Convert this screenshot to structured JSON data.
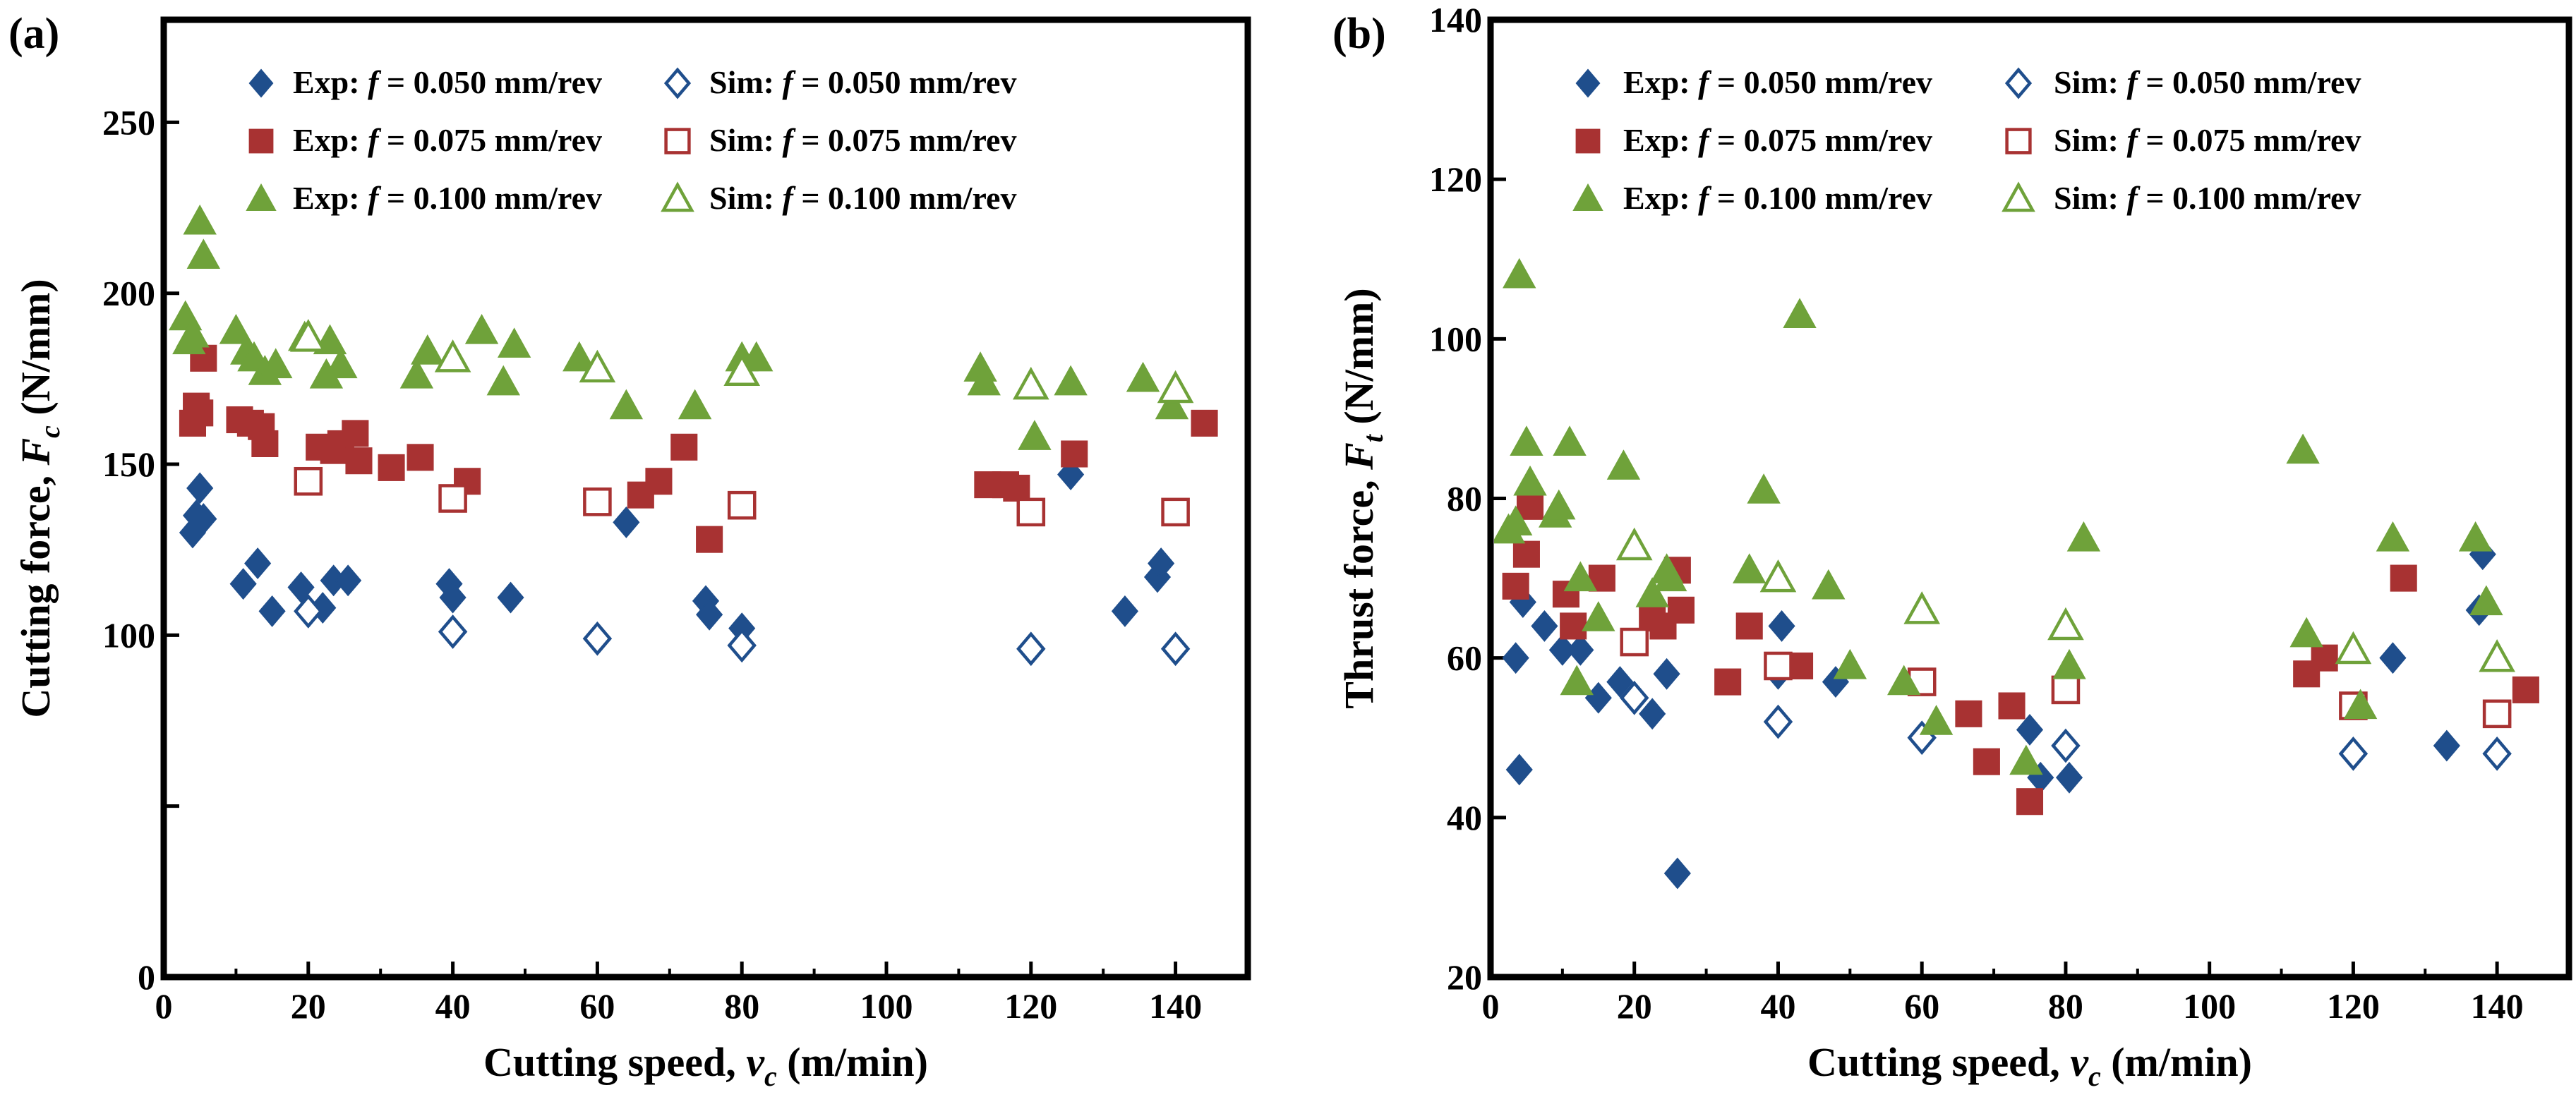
{
  "chart_data": [
    {
      "panel_label": "(a)",
      "type": "scatter",
      "xlabel_main": "Cutting speed, ",
      "xlabel_symbol": "v",
      "xlabel_sub": "c",
      "xlabel_unit": " (m/min)",
      "ylabel_main": "Cutting force, ",
      "ylabel_symbol": "F",
      "ylabel_sub": "c",
      "ylabel_unit": " (N/mm)",
      "xlim": [
        0,
        150
      ],
      "ylim": [
        0,
        280
      ],
      "xticks": [
        0,
        20,
        40,
        60,
        80,
        100,
        120,
        140
      ],
      "yticks": [
        0,
        50,
        100,
        150,
        200,
        250
      ],
      "ytick_labels": [
        "0",
        "",
        "100",
        "150",
        "200",
        "250"
      ],
      "series": [
        {
          "name": "Exp: f = 0.050 mm/rev",
          "legend_prefix": "Exp: ",
          "legend_feed": "= 0.050 mm/rev",
          "marker": "diamond",
          "filled": true,
          "color": "#1f4e8c",
          "x": [
            4,
            4.5,
            5,
            5.5,
            11,
            13,
            15,
            19,
            22,
            23.5,
            25.5,
            39.5,
            40,
            48,
            64,
            75,
            75.5,
            80,
            125.5,
            133,
            137.5,
            138
          ],
          "y": [
            130,
            135,
            143,
            134,
            115,
            121,
            107,
            114,
            108,
            116,
            116,
            115,
            111,
            111,
            133,
            110,
            106,
            102,
            147,
            107,
            117,
            121
          ]
        },
        {
          "name": "Sim: f = 0.050 mm/rev",
          "legend_prefix": "Sim: ",
          "legend_feed": "= 0.050 mm/rev",
          "marker": "diamond",
          "filled": false,
          "color": "#1f4e8c",
          "x": [
            20,
            40,
            60,
            80,
            120,
            140
          ],
          "y": [
            107,
            101,
            99,
            97,
            96,
            96
          ]
        },
        {
          "name": "Exp: f = 0.075 mm/rev",
          "legend_prefix": "Exp: ",
          "legend_feed": "= 0.075 mm/rev",
          "marker": "square",
          "filled": true,
          "color": "#a83232",
          "x": [
            4,
            4.5,
            5,
            5.5,
            10.5,
            12,
            13.5,
            14,
            21.5,
            23.5,
            24.5,
            26.5,
            27,
            31.5,
            35.5,
            42,
            66,
            68.5,
            72,
            75.5,
            114,
            116.5,
            118,
            126,
            144
          ],
          "y": [
            162,
            167,
            165,
            181,
            163,
            162,
            161,
            156,
            155,
            154,
            156,
            159,
            151,
            149,
            152,
            145,
            141,
            145,
            155,
            128,
            144,
            144,
            143,
            153,
            162
          ]
        },
        {
          "name": "Sim: f = 0.075 mm/rev",
          "legend_prefix": "Sim: ",
          "legend_feed": "= 0.075 mm/rev",
          "marker": "square",
          "filled": false,
          "color": "#a83232",
          "x": [
            20,
            40,
            60,
            80,
            120,
            140
          ],
          "y": [
            145,
            140,
            139,
            138,
            136,
            136
          ]
        },
        {
          "name": "Exp: f = 0.100 mm/rev",
          "legend_prefix": "Exp: ",
          "legend_feed": "= 0.100 mm/rev",
          "marker": "triangle",
          "filled": true,
          "color": "#6fa23a",
          "x": [
            3,
            3.5,
            4,
            5,
            5.5,
            10,
            11.5,
            12.5,
            14,
            15.5,
            19.5,
            22.5,
            23,
            24.5,
            35,
            36.5,
            44,
            47,
            48.5,
            57.5,
            64,
            73.5,
            80,
            82,
            113,
            113.5,
            120.5,
            125.5,
            135.5,
            139.5
          ],
          "y": [
            193,
            186,
            188,
            221,
            211,
            189,
            183,
            181,
            177,
            179,
            187,
            176,
            186,
            179,
            176,
            183,
            189,
            174,
            185,
            181,
            167,
            167,
            181,
            181,
            178,
            174,
            158,
            174,
            175,
            167
          ]
        },
        {
          "name": "Sim: f = 0.100 mm/rev",
          "legend_prefix": "Sim: ",
          "legend_feed": "= 0.100 mm/rev",
          "marker": "triangle",
          "filled": false,
          "color": "#6fa23a",
          "x": [
            20,
            40,
            60,
            80,
            120,
            140
          ],
          "y": [
            187,
            181,
            178,
            177,
            173,
            172
          ]
        }
      ]
    },
    {
      "panel_label": "(b)",
      "type": "scatter",
      "xlabel_main": "Cutting speed, ",
      "xlabel_symbol": "v",
      "xlabel_sub": "c",
      "xlabel_unit": " (m/min)",
      "ylabel_main": "Thrust force, ",
      "ylabel_symbol": "F",
      "ylabel_sub": "t",
      "ylabel_unit": " (N/mm)",
      "xlim": [
        0,
        150
      ],
      "ylim": [
        20,
        140
      ],
      "xticks": [
        0,
        20,
        40,
        60,
        80,
        100,
        120,
        140
      ],
      "yticks": [
        20,
        40,
        60,
        80,
        100,
        120,
        140
      ],
      "ytick_labels": [
        "20",
        "40",
        "60",
        "80",
        "100",
        "120",
        "140"
      ],
      "series": [
        {
          "name": "Exp: f = 0.050 mm/rev",
          "legend_prefix": "Exp: ",
          "legend_feed": "= 0.050 mm/rev",
          "marker": "diamond",
          "filled": true,
          "color": "#1f4e8c",
          "x": [
            3.5,
            4,
            4.5,
            7.5,
            10,
            12.5,
            15,
            18,
            22.5,
            24.5,
            26,
            40,
            40.5,
            48,
            75,
            76.5,
            80.5,
            125.5,
            133,
            137.5,
            138
          ],
          "y": [
            60,
            46,
            67,
            64,
            61,
            61,
            55,
            57,
            53,
            58,
            33,
            58,
            64,
            57,
            51,
            45,
            45,
            60,
            49,
            66,
            73
          ]
        },
        {
          "name": "Sim: f = 0.050 mm/rev",
          "legend_prefix": "Sim: ",
          "legend_feed": "= 0.050 mm/rev",
          "marker": "diamond",
          "filled": false,
          "color": "#1f4e8c",
          "x": [
            20,
            40,
            60,
            80,
            120,
            140
          ],
          "y": [
            55,
            52,
            50,
            49,
            48,
            48
          ]
        },
        {
          "name": "Exp: f = 0.075 mm/rev",
          "legend_prefix": "Exp: ",
          "legend_feed": "= 0.075 mm/rev",
          "marker": "square",
          "filled": true,
          "color": "#a83232",
          "x": [
            3.5,
            5,
            5.5,
            10.5,
            11.5,
            15.5,
            22.5,
            24,
            26,
            26.5,
            33,
            36,
            40,
            43,
            66.5,
            69,
            72.5,
            75,
            113.5,
            116,
            127,
            144
          ],
          "y": [
            69,
            73,
            79,
            68,
            64,
            70,
            65,
            64,
            71,
            66,
            57,
            64,
            59,
            59,
            53,
            47,
            54,
            42,
            58,
            60,
            70,
            56
          ]
        },
        {
          "name": "Sim: f = 0.075 mm/rev",
          "legend_prefix": "Sim: ",
          "legend_feed": "= 0.075 mm/rev",
          "marker": "square",
          "filled": false,
          "color": "#a83232",
          "x": [
            20,
            40,
            60,
            80,
            120,
            140
          ],
          "y": [
            62,
            59,
            57,
            56,
            54,
            53
          ]
        },
        {
          "name": "Exp: f = 0.100 mm/rev",
          "legend_prefix": "Exp: ",
          "legend_feed": "= 0.100 mm/rev",
          "marker": "triangle",
          "filled": true,
          "color": "#6fa23a",
          "x": [
            2.5,
            3.5,
            4,
            5,
            5.5,
            9,
            9.5,
            11,
            12.5,
            12,
            15,
            18.5,
            22.5,
            24.5,
            25,
            36,
            38,
            43,
            47,
            50,
            57.5,
            62,
            74.5,
            80.5,
            82.5,
            113,
            113.5,
            121,
            125.5,
            137,
            138.5
          ],
          "y": [
            76,
            77,
            108,
            87,
            82,
            78,
            79,
            87,
            70,
            57,
            65,
            84,
            68,
            71,
            70,
            71,
            81,
            103,
            69,
            59,
            57,
            52,
            47,
            59,
            75,
            86,
            63,
            54,
            75,
            75,
            67
          ]
        },
        {
          "name": "Sim: f = 0.100 mm/rev",
          "legend_prefix": "Sim: ",
          "legend_feed": "= 0.100 mm/rev",
          "marker": "triangle",
          "filled": false,
          "color": "#6fa23a",
          "x": [
            20,
            40,
            60,
            80,
            120,
            140
          ],
          "y": [
            74,
            70,
            66,
            64,
            61,
            60
          ]
        }
      ]
    }
  ]
}
